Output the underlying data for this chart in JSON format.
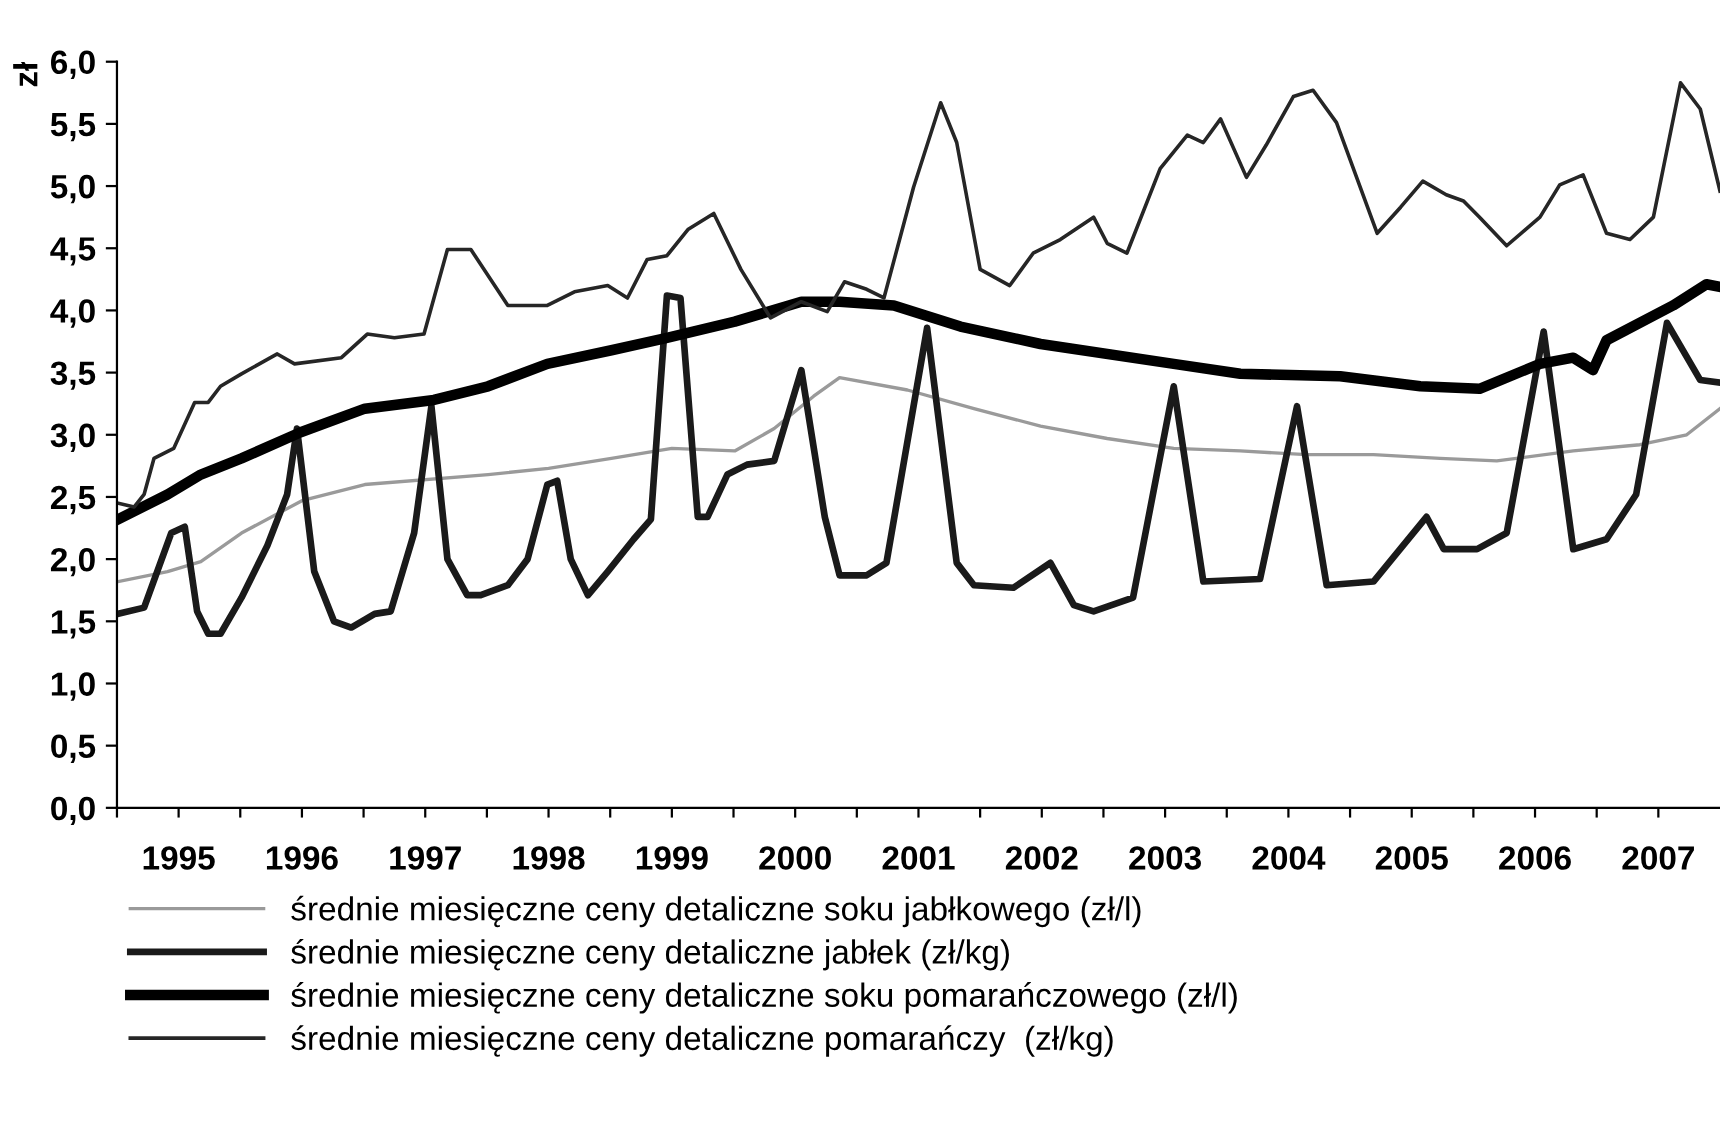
{
  "chart_data": {
    "type": "line",
    "ylabel": "zł",
    "xlim": [
      1995,
      2008
    ],
    "xticks": [
      {
        "value": 1995,
        "label": null
      },
      {
        "value": 1995.5,
        "label": "1995"
      },
      {
        "value": 1996,
        "label": null
      },
      {
        "value": 1996.5,
        "label": "1996"
      },
      {
        "value": 1997,
        "label": null
      },
      {
        "value": 1997.5,
        "label": "1997"
      },
      {
        "value": 1998,
        "label": null
      },
      {
        "value": 1998.5,
        "label": "1998"
      },
      {
        "value": 1999,
        "label": null
      },
      {
        "value": 1999.5,
        "label": "1999"
      },
      {
        "value": 2000,
        "label": null
      },
      {
        "value": 2000.5,
        "label": "2000"
      },
      {
        "value": 2001,
        "label": null
      },
      {
        "value": 2001.5,
        "label": "2001"
      },
      {
        "value": 2002,
        "label": null
      },
      {
        "value": 2002.5,
        "label": "2002"
      },
      {
        "value": 2003,
        "label": null
      },
      {
        "value": 2003.5,
        "label": "2003"
      },
      {
        "value": 2004,
        "label": null
      },
      {
        "value": 2004.5,
        "label": "2004"
      },
      {
        "value": 2005,
        "label": null
      },
      {
        "value": 2005.5,
        "label": "2005"
      },
      {
        "value": 2006,
        "label": null
      },
      {
        "value": 2006.5,
        "label": "2006"
      },
      {
        "value": 2007,
        "label": null
      },
      {
        "value": 2007.5,
        "label": "2007"
      }
    ],
    "ylim": [
      0,
      6
    ],
    "yticks": [
      {
        "value": 0,
        "label": "0,0"
      },
      {
        "value": 0.5,
        "label": "0,5"
      },
      {
        "value": 1,
        "label": "1,0"
      },
      {
        "value": 1.5,
        "label": "1,5"
      },
      {
        "value": 2,
        "label": "2,0"
      },
      {
        "value": 2.5,
        "label": "2,5"
      },
      {
        "value": 3,
        "label": "3,0"
      },
      {
        "value": 3.5,
        "label": "3,5"
      },
      {
        "value": 4,
        "label": "4,0"
      },
      {
        "value": 4.5,
        "label": "4,5"
      },
      {
        "value": 5,
        "label": "5,0"
      },
      {
        "value": 5.5,
        "label": "5,5"
      },
      {
        "value": 6,
        "label": "6,0"
      }
    ],
    "grid": false,
    "legend": "bottom",
    "marker": "none",
    "line_style": "solid",
    "series": [
      {
        "name": "średnie miesięczne ceny detaliczne soku jabłkowego (zł/l)",
        "color": "#9a9a9a",
        "x": [
          1995.01,
          1995.41,
          1995.68,
          1996.01,
          1996.5,
          1997.01,
          1998.01,
          1998.5,
          1999.01,
          1999.5,
          2000.01,
          2000.33,
          2000.65,
          2000.86,
          2001.41,
          2001.95,
          2002.49,
          2003.03,
          2003.57,
          2004.11,
          2004.65,
          2005.19,
          2005.73,
          2006.19,
          2006.81,
          2007.35,
          2007.73,
          2008.0
        ],
        "values": [
          1.82,
          1.9,
          1.98,
          2.21,
          2.47,
          2.6,
          2.68,
          2.73,
          2.81,
          2.89,
          2.87,
          3.05,
          3.31,
          3.46,
          3.36,
          3.21,
          3.07,
          2.97,
          2.89,
          2.87,
          2.84,
          2.84,
          2.81,
          2.79,
          2.87,
          2.92,
          3.0,
          3.21
        ]
      },
      {
        "name": "średnie miesięczne ceny detaliczne jabłek (zł/kg)",
        "color": "#1a1a1a",
        "x": [
          1995.01,
          1995.22,
          1995.44,
          1995.55,
          1995.65,
          1995.74,
          1995.84,
          1996.01,
          1996.22,
          1996.38,
          1996.46,
          1996.6,
          1996.76,
          1996.9,
          1997.09,
          1997.22,
          1997.41,
          1997.55,
          1997.68,
          1997.84,
          1997.95,
          1998.17,
          1998.33,
          1998.49,
          1998.57,
          1998.68,
          1998.82,
          1998.98,
          1999.19,
          1999.33,
          1999.46,
          1999.57,
          1999.71,
          1999.79,
          1999.95,
          2000.11,
          2000.33,
          2000.55,
          2000.74,
          2000.86,
          2001.08,
          2001.24,
          2001.57,
          2001.81,
          2001.95,
          2002.27,
          2002.57,
          2002.76,
          2002.92,
          2003.24,
          2003.57,
          2003.81,
          2004.27,
          2004.57,
          2004.81,
          2005.19,
          2005.62,
          2005.76,
          2006.03,
          2006.27,
          2006.57,
          2006.81,
          2007.08,
          2007.32,
          2007.57,
          2007.84,
          2008.0
        ],
        "values": [
          1.56,
          1.61,
          2.21,
          2.26,
          1.58,
          1.4,
          1.4,
          1.69,
          2.11,
          2.52,
          3.05,
          1.9,
          1.5,
          1.45,
          1.56,
          1.58,
          2.21,
          3.23,
          2.0,
          1.71,
          1.71,
          1.79,
          2.0,
          2.6,
          2.63,
          2.0,
          1.71,
          1.9,
          2.16,
          2.32,
          4.12,
          4.1,
          2.34,
          2.34,
          2.68,
          2.76,
          2.79,
          3.52,
          2.34,
          1.87,
          1.87,
          1.97,
          3.86,
          1.97,
          1.79,
          1.77,
          1.97,
          1.63,
          1.58,
          1.69,
          3.39,
          1.82,
          1.84,
          3.23,
          1.79,
          1.82,
          2.34,
          2.08,
          2.08,
          2.21,
          3.83,
          2.08,
          2.16,
          2.52,
          3.9,
          3.44,
          3.42
        ]
      },
      {
        "name": "średnie miesięczne ceny detaliczne soku pomarańczowego (zł/l)",
        "color": "#000000",
        "x": [
          1995.01,
          1995.41,
          1995.68,
          1996.01,
          1996.49,
          1997.01,
          1997.57,
          1998.01,
          1998.49,
          1999.01,
          1999.46,
          2000.01,
          2000.55,
          2000.86,
          2001.3,
          2001.84,
          2002.49,
          2003.57,
          2004.11,
          2004.92,
          2005.57,
          2006.05,
          2006.54,
          2006.81,
          2006.97,
          2007.08,
          2007.62,
          2007.89,
          2008.0
        ],
        "values": [
          2.32,
          2.52,
          2.68,
          2.81,
          3.02,
          3.21,
          3.28,
          3.39,
          3.57,
          3.68,
          3.78,
          3.91,
          4.07,
          4.07,
          4.04,
          3.87,
          3.73,
          3.57,
          3.49,
          3.47,
          3.39,
          3.37,
          3.57,
          3.62,
          3.52,
          3.76,
          4.04,
          4.21,
          4.19
        ]
      },
      {
        "name": "średnie miesięczne ceny detaliczne pomarańczy  (zł/kg)",
        "color": "#262626",
        "x": [
          1995.01,
          1995.14,
          1995.22,
          1995.3,
          1995.46,
          1995.63,
          1995.74,
          1995.84,
          1996.01,
          1996.3,
          1996.44,
          1996.82,
          1997.03,
          1997.25,
          1997.49,
          1997.68,
          1997.87,
          1998.17,
          1998.49,
          1998.71,
          1998.98,
          1999.14,
          1999.3,
          1999.46,
          1999.63,
          1999.84,
          2000.06,
          2000.3,
          2000.55,
          2000.76,
          2000.9,
          2001.08,
          2001.22,
          2001.46,
          2001.68,
          2001.81,
          2002.0,
          2002.24,
          2002.43,
          2002.65,
          2002.92,
          2003.03,
          2003.19,
          2003.46,
          2003.68,
          2003.81,
          2003.95,
          2004.16,
          2004.32,
          2004.54,
          2004.7,
          2004.89,
          2005.22,
          2005.41,
          2005.59,
          2005.78,
          2005.92,
          2006.05,
          2006.27,
          2006.54,
          2006.7,
          2006.89,
          2007.08,
          2007.27,
          2007.46,
          2007.68,
          2007.84,
          2008.0
        ],
        "values": [
          2.45,
          2.42,
          2.52,
          2.81,
          2.89,
          3.26,
          3.26,
          3.39,
          3.49,
          3.65,
          3.57,
          3.62,
          3.81,
          3.78,
          3.81,
          4.49,
          4.49,
          4.04,
          4.04,
          4.15,
          4.2,
          4.1,
          4.41,
          4.44,
          4.65,
          4.78,
          4.33,
          3.94,
          4.07,
          3.99,
          4.23,
          4.17,
          4.1,
          4.99,
          5.67,
          5.35,
          4.33,
          4.2,
          4.46,
          4.57,
          4.75,
          4.54,
          4.46,
          5.14,
          5.41,
          5.35,
          5.54,
          5.07,
          5.33,
          5.72,
          5.77,
          5.51,
          4.62,
          4.83,
          5.04,
          4.93,
          4.88,
          4.75,
          4.52,
          4.75,
          5.01,
          5.09,
          4.62,
          4.57,
          4.75,
          5.83,
          5.62,
          4.96
        ]
      }
    ]
  }
}
